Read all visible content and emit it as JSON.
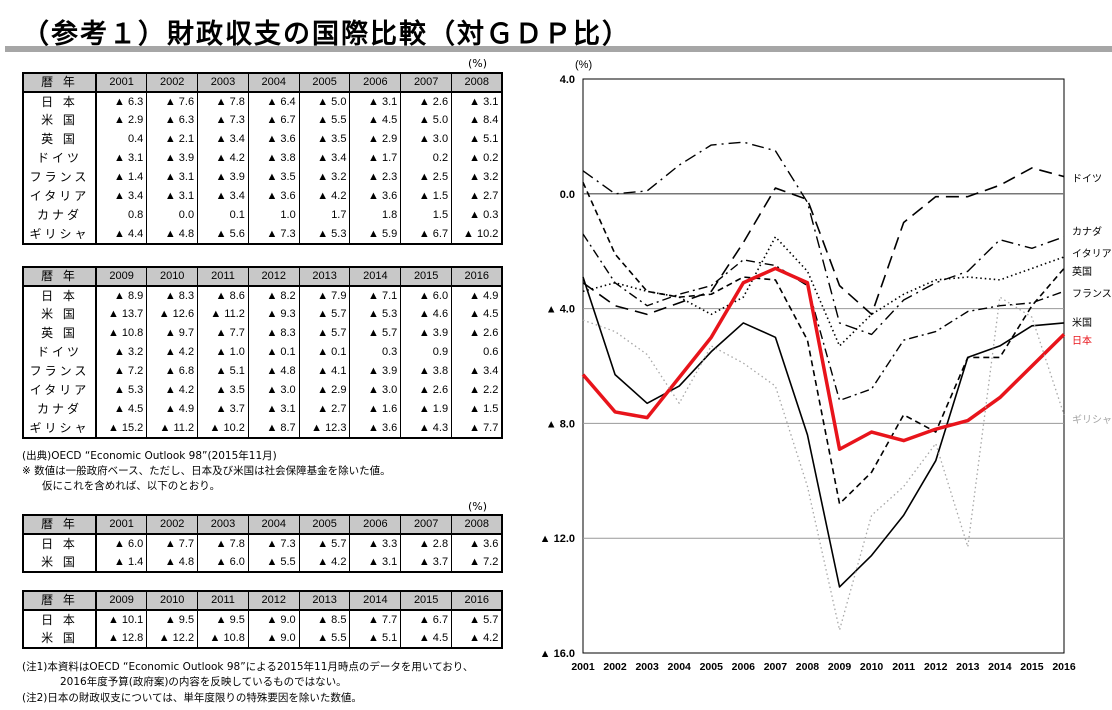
{
  "title": "（参考１）財政収支の国際比較（対ＧＤＰ比）",
  "unit": "(%)",
  "row_header": "暦 年",
  "table1": {
    "years": [
      "2001",
      "2002",
      "2003",
      "2004",
      "2005",
      "2006",
      "2007",
      "2008"
    ],
    "rows": [
      {
        "label": "日 本",
        "values": [
          "▲ 6.3",
          "▲ 7.6",
          "▲ 7.8",
          "▲ 6.4",
          "▲ 5.0",
          "▲ 3.1",
          "▲ 2.6",
          "▲ 3.1"
        ]
      },
      {
        "label": "米 国",
        "values": [
          "▲ 2.9",
          "▲ 6.3",
          "▲ 7.3",
          "▲ 6.7",
          "▲ 5.5",
          "▲ 4.5",
          "▲ 5.0",
          "▲ 8.4"
        ]
      },
      {
        "label": "英 国",
        "values": [
          "0.4",
          "▲ 2.1",
          "▲ 3.4",
          "▲ 3.6",
          "▲ 3.5",
          "▲ 2.9",
          "▲ 3.0",
          "▲ 5.1"
        ]
      },
      {
        "label": "ドイツ",
        "values": [
          "▲ 3.1",
          "▲ 3.9",
          "▲ 4.2",
          "▲ 3.8",
          "▲ 3.4",
          "▲ 1.7",
          "0.2",
          "▲ 0.2"
        ]
      },
      {
        "label": "フランス",
        "values": [
          "▲ 1.4",
          "▲ 3.1",
          "▲ 3.9",
          "▲ 3.5",
          "▲ 3.2",
          "▲ 2.3",
          "▲ 2.5",
          "▲ 3.2"
        ]
      },
      {
        "label": "イタリア",
        "values": [
          "▲ 3.4",
          "▲ 3.1",
          "▲ 3.4",
          "▲ 3.6",
          "▲ 4.2",
          "▲ 3.6",
          "▲ 1.5",
          "▲ 2.7"
        ]
      },
      {
        "label": "カナダ",
        "values": [
          "0.8",
          "0.0",
          "0.1",
          "1.0",
          "1.7",
          "1.8",
          "1.5",
          "▲ 0.3"
        ]
      },
      {
        "label": "ギリシャ",
        "values": [
          "▲ 4.4",
          "▲ 4.8",
          "▲ 5.6",
          "▲ 7.3",
          "▲ 5.3",
          "▲ 5.9",
          "▲ 6.7",
          "▲ 10.2"
        ]
      }
    ]
  },
  "table2": {
    "years": [
      "2009",
      "2010",
      "2011",
      "2012",
      "2013",
      "2014",
      "2015",
      "2016"
    ],
    "rows": [
      {
        "label": "日 本",
        "values": [
          "▲ 8.9",
          "▲ 8.3",
          "▲ 8.6",
          "▲ 8.2",
          "▲ 7.9",
          "▲ 7.1",
          "▲ 6.0",
          "▲ 4.9"
        ]
      },
      {
        "label": "米 国",
        "values": [
          "▲ 13.7",
          "▲ 12.6",
          "▲ 11.2",
          "▲ 9.3",
          "▲ 5.7",
          "▲ 5.3",
          "▲ 4.6",
          "▲ 4.5"
        ]
      },
      {
        "label": "英 国",
        "values": [
          "▲ 10.8",
          "▲ 9.7",
          "▲ 7.7",
          "▲ 8.3",
          "▲ 5.7",
          "▲ 5.7",
          "▲ 3.9",
          "▲ 2.6"
        ]
      },
      {
        "label": "ドイツ",
        "values": [
          "▲ 3.2",
          "▲ 4.2",
          "▲ 1.0",
          "▲ 0.1",
          "▲ 0.1",
          "0.3",
          "0.9",
          "0.6"
        ]
      },
      {
        "label": "フランス",
        "values": [
          "▲ 7.2",
          "▲ 6.8",
          "▲ 5.1",
          "▲ 4.8",
          "▲ 4.1",
          "▲ 3.9",
          "▲ 3.8",
          "▲ 3.4"
        ]
      },
      {
        "label": "イタリア",
        "values": [
          "▲ 5.3",
          "▲ 4.2",
          "▲ 3.5",
          "▲ 3.0",
          "▲ 2.9",
          "▲ 3.0",
          "▲ 2.6",
          "▲ 2.2"
        ]
      },
      {
        "label": "カナダ",
        "values": [
          "▲ 4.5",
          "▲ 4.9",
          "▲ 3.7",
          "▲ 3.1",
          "▲ 2.7",
          "▲ 1.6",
          "▲ 1.9",
          "▲ 1.5"
        ]
      },
      {
        "label": "ギリシャ",
        "values": [
          "▲ 15.2",
          "▲ 11.2",
          "▲ 10.2",
          "▲ 8.7",
          "▲ 12.3",
          "▲ 3.6",
          "▲ 4.3",
          "▲ 7.7"
        ]
      }
    ]
  },
  "source": "(出典)OECD “Economic Outlook 98”(2015年11月)",
  "note_star_1": "※  数値は一般政府ベース、ただし、日本及び米国は社会保障基金を除いた値。",
  "note_star_2": "仮にこれを含めれば、以下のとおり。",
  "table3": {
    "years": [
      "2001",
      "2002",
      "2003",
      "2004",
      "2005",
      "2006",
      "2007",
      "2008"
    ],
    "rows": [
      {
        "label": "日 本",
        "values": [
          "▲ 6.0",
          "▲ 7.7",
          "▲ 7.8",
          "▲ 7.3",
          "▲ 5.7",
          "▲ 3.3",
          "▲ 2.8",
          "▲ 3.6"
        ]
      },
      {
        "label": "米 国",
        "values": [
          "▲ 1.4",
          "▲ 4.8",
          "▲ 6.0",
          "▲ 5.5",
          "▲ 4.2",
          "▲ 3.1",
          "▲ 3.7",
          "▲ 7.2"
        ]
      }
    ]
  },
  "table4": {
    "years": [
      "2009",
      "2010",
      "2011",
      "2012",
      "2013",
      "2014",
      "2015",
      "2016"
    ],
    "rows": [
      {
        "label": "日 本",
        "values": [
          "▲ 10.1",
          "▲ 9.5",
          "▲ 9.5",
          "▲ 9.0",
          "▲ 8.5",
          "▲ 7.7",
          "▲ 6.7",
          "▲ 5.7"
        ]
      },
      {
        "label": "米 国",
        "values": [
          "▲ 12.8",
          "▲ 12.2",
          "▲ 10.8",
          "▲ 9.0",
          "▲ 5.5",
          "▲ 5.1",
          "▲ 4.5",
          "▲ 4.2"
        ]
      }
    ]
  },
  "note1_a": "(注1)本資料はOECD “Economic Outlook 98”による2015年11月時点のデータを用いており、",
  "note1_b": "2016年度予算(政府案)の内容を反映しているものではない。",
  "note2": "(注2)日本の財政収支については、単年度限りの特殊要因を除いた数値。",
  "chart_data": {
    "type": "line",
    "ylabel": "(%)",
    "x": [
      "2001",
      "2002",
      "2003",
      "2004",
      "2005",
      "2006",
      "2007",
      "2008",
      "2009",
      "2010",
      "2011",
      "2012",
      "2013",
      "2014",
      "2015",
      "2016"
    ],
    "ylim": [
      -16,
      4
    ],
    "yticks": [
      {
        "v": 4,
        "label": "4.0"
      },
      {
        "v": 0,
        "label": "0.0"
      },
      {
        "v": -4,
        "label": "▲ 4.0"
      },
      {
        "v": -8,
        "label": "▲ 8.0"
      },
      {
        "v": -12,
        "label": "▲ 12.0"
      },
      {
        "v": -16,
        "label": "▲ 16.0"
      }
    ],
    "grid": true,
    "legend": "right, at line ends",
    "series": [
      {
        "name": "ドイツ",
        "color": "#000000",
        "style": "longdash",
        "values": [
          -3.1,
          -3.9,
          -4.2,
          -3.8,
          -3.4,
          -1.7,
          0.2,
          -0.2,
          -3.2,
          -4.2,
          -1.0,
          -0.1,
          -0.1,
          0.3,
          0.9,
          0.6
        ]
      },
      {
        "name": "カナダ",
        "color": "#000000",
        "style": "dashdot",
        "values": [
          0.8,
          0.0,
          0.1,
          1.0,
          1.7,
          1.8,
          1.5,
          -0.3,
          -4.5,
          -4.9,
          -3.7,
          -3.1,
          -2.7,
          -1.6,
          -1.9,
          -1.5
        ]
      },
      {
        "name": "イタリア",
        "color": "#000000",
        "style": "dotted",
        "values": [
          -3.4,
          -3.1,
          -3.4,
          -3.6,
          -4.2,
          -3.6,
          -1.5,
          -2.7,
          -5.3,
          -4.2,
          -3.5,
          -3.0,
          -2.9,
          -3.0,
          -2.6,
          -2.2
        ]
      },
      {
        "name": "英国",
        "color": "#000000",
        "style": "dash",
        "values": [
          0.4,
          -2.1,
          -3.4,
          -3.6,
          -3.5,
          -2.9,
          -3.0,
          -5.1,
          -10.8,
          -9.7,
          -7.7,
          -8.3,
          -5.7,
          -5.7,
          -3.9,
          -2.6
        ]
      },
      {
        "name": "フランス",
        "color": "#000000",
        "style": "dashdotlong",
        "values": [
          -1.4,
          -3.1,
          -3.9,
          -3.5,
          -3.2,
          -2.3,
          -2.5,
          -3.2,
          -7.2,
          -6.8,
          -5.1,
          -4.8,
          -4.1,
          -3.9,
          -3.8,
          -3.4
        ]
      },
      {
        "name": "米国",
        "color": "#000000",
        "style": "solid",
        "values": [
          -2.9,
          -6.3,
          -7.3,
          -6.7,
          -5.5,
          -4.5,
          -5.0,
          -8.4,
          -13.7,
          -12.6,
          -11.2,
          -9.3,
          -5.7,
          -5.3,
          -4.6,
          -4.5
        ]
      },
      {
        "name": "日本",
        "color": "#e8141b",
        "style": "thick",
        "values": [
          -6.3,
          -7.6,
          -7.8,
          -6.4,
          -5.0,
          -3.1,
          -2.6,
          -3.1,
          -8.9,
          -8.3,
          -8.6,
          -8.2,
          -7.9,
          -7.1,
          -6.0,
          -4.9
        ]
      },
      {
        "name": "ギリシャ",
        "color": "#a6a6a6",
        "style": "dotted",
        "values": [
          -4.4,
          -4.8,
          -5.6,
          -7.3,
          -5.3,
          -5.9,
          -6.7,
          -10.2,
          -15.2,
          -11.2,
          -10.2,
          -8.7,
          -12.3,
          -3.6,
          -4.3,
          -7.7
        ]
      }
    ]
  }
}
